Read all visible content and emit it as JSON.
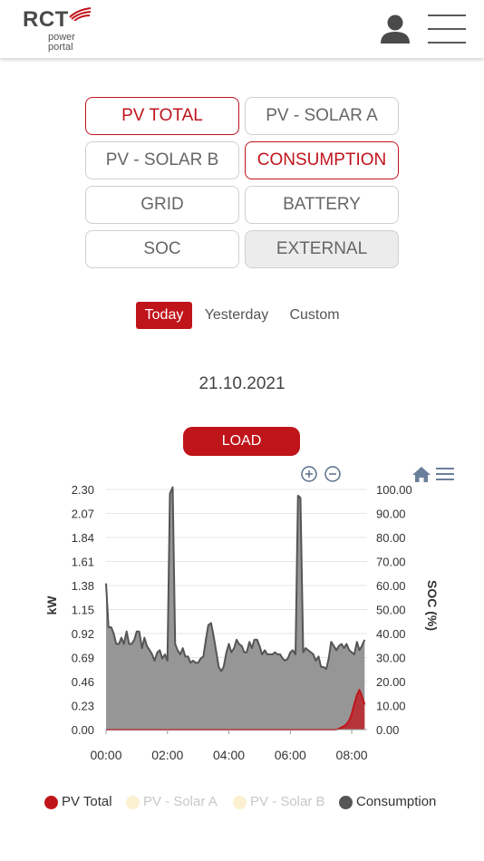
{
  "header": {
    "logo_main": "RCT",
    "logo_line1": "power",
    "logo_line2": "portal"
  },
  "datasets": [
    {
      "label": "PV TOTAL",
      "state": "active"
    },
    {
      "label": "PV - SOLAR A",
      "state": "normal"
    },
    {
      "label": "PV - SOLAR B",
      "state": "normal"
    },
    {
      "label": "CONSUMPTION",
      "state": "active"
    },
    {
      "label": "GRID",
      "state": "normal"
    },
    {
      "label": "BATTERY",
      "state": "normal"
    },
    {
      "label": "SOC",
      "state": "normal"
    },
    {
      "label": "EXTERNAL",
      "state": "disabled"
    }
  ],
  "period_tabs": [
    {
      "label": "Today",
      "active": true
    },
    {
      "label": "Yesterday",
      "active": false
    },
    {
      "label": "Custom",
      "active": false
    }
  ],
  "selected_date": "21.10.2021",
  "load_label": "LOAD",
  "colors": {
    "accent": "#c0141b",
    "pv_total": "#c0141b",
    "pv_solar": "#fbf0cf",
    "consumption": "#555555",
    "consumption_fill": "#969696",
    "toolbar_icon": "#6a7f9c"
  },
  "chart_data": {
    "type": "area",
    "ylabel": "kW",
    "y2label": "SOC (%)",
    "ylim": [
      0,
      2.3
    ],
    "y2lim": [
      0,
      100
    ],
    "xlim": [
      0,
      8.5
    ],
    "x_ticks": [
      "00:00",
      "02:00",
      "04:00",
      "06:00",
      "08:00"
    ],
    "y_ticks": [
      "0.00",
      "0.23",
      "0.46",
      "0.69",
      "0.92",
      "1.15",
      "1.38",
      "1.61",
      "1.84",
      "2.07",
      "2.30"
    ],
    "y2_ticks": [
      "0.00",
      "10.00",
      "20.00",
      "30.00",
      "40.00",
      "50.00",
      "60.00",
      "70.00",
      "80.00",
      "90.00",
      "100.00"
    ],
    "grid": true,
    "legend_position": "bottom",
    "series": [
      {
        "name": "PV Total",
        "x": [
          0,
          7.5,
          7.67,
          7.83,
          7.92,
          8.0,
          8.08,
          8.17,
          8.25,
          8.33,
          8.42
        ],
        "values": [
          0,
          0,
          0.02,
          0.05,
          0.09,
          0.15,
          0.24,
          0.33,
          0.38,
          0.32,
          0.24
        ]
      },
      {
        "name": "PV - Solar A",
        "x": [],
        "values": []
      },
      {
        "name": "PV - Solar B",
        "x": [],
        "values": []
      },
      {
        "name": "Consumption",
        "x": [
          0,
          0.08,
          0.17,
          0.25,
          0.33,
          0.42,
          0.5,
          0.58,
          0.67,
          0.75,
          0.83,
          0.92,
          1.0,
          1.08,
          1.17,
          1.25,
          1.33,
          1.42,
          1.5,
          1.58,
          1.67,
          1.75,
          1.83,
          1.92,
          2.0,
          2.08,
          2.17,
          2.25,
          2.33,
          2.42,
          2.5,
          2.58,
          2.67,
          2.75,
          2.83,
          2.92,
          3.0,
          3.08,
          3.17,
          3.25,
          3.33,
          3.42,
          3.5,
          3.58,
          3.67,
          3.75,
          3.83,
          3.92,
          4.0,
          4.08,
          4.17,
          4.25,
          4.33,
          4.42,
          4.5,
          4.58,
          4.67,
          4.75,
          4.83,
          4.92,
          5.0,
          5.08,
          5.17,
          5.25,
          5.33,
          5.42,
          5.5,
          5.58,
          5.67,
          5.75,
          5.83,
          5.92,
          6.0,
          6.08,
          6.17,
          6.25,
          6.33,
          6.42,
          6.5,
          6.58,
          6.67,
          6.75,
          6.83,
          6.92,
          7.0,
          7.08,
          7.17,
          7.25,
          7.33,
          7.42,
          7.5,
          7.58,
          7.67,
          7.75,
          7.83,
          7.92,
          8.0,
          8.08,
          8.17,
          8.25,
          8.33,
          8.42
        ],
        "values": [
          1.4,
          0.98,
          0.98,
          0.92,
          0.82,
          0.82,
          0.88,
          0.82,
          0.94,
          0.82,
          0.82,
          0.86,
          0.94,
          0.94,
          0.78,
          0.88,
          0.8,
          0.76,
          0.72,
          0.66,
          0.74,
          0.76,
          0.68,
          0.72,
          0.66,
          2.26,
          2.32,
          0.82,
          0.76,
          0.72,
          0.78,
          0.7,
          0.7,
          0.64,
          0.66,
          0.64,
          0.64,
          0.68,
          0.7,
          0.86,
          1.0,
          1.02,
          0.9,
          0.76,
          0.6,
          0.56,
          0.6,
          0.74,
          0.82,
          0.74,
          0.78,
          0.86,
          0.82,
          0.8,
          0.74,
          0.74,
          0.84,
          0.78,
          0.86,
          0.86,
          0.8,
          0.72,
          0.76,
          0.72,
          0.72,
          0.72,
          0.74,
          0.72,
          0.72,
          0.68,
          0.66,
          0.68,
          0.74,
          0.76,
          0.72,
          2.24,
          2.22,
          0.74,
          0.78,
          0.76,
          0.74,
          0.72,
          0.66,
          0.7,
          0.6,
          0.6,
          0.58,
          0.68,
          0.84,
          0.8,
          0.76,
          0.8,
          0.82,
          0.78,
          0.82,
          0.76,
          0.74,
          0.72,
          0.84,
          0.76,
          0.8,
          0.86
        ]
      }
    ]
  },
  "legend": [
    {
      "label": "PV Total",
      "color": "#c0141b",
      "text_color": "#333333"
    },
    {
      "label": "PV - Solar A",
      "color": "#fbf0cf",
      "text_color": "#c8c8c8"
    },
    {
      "label": "PV - Solar B",
      "color": "#fbf0cf",
      "text_color": "#c8c8c8"
    },
    {
      "label": "Consumption",
      "color": "#555555",
      "text_color": "#333333"
    }
  ]
}
